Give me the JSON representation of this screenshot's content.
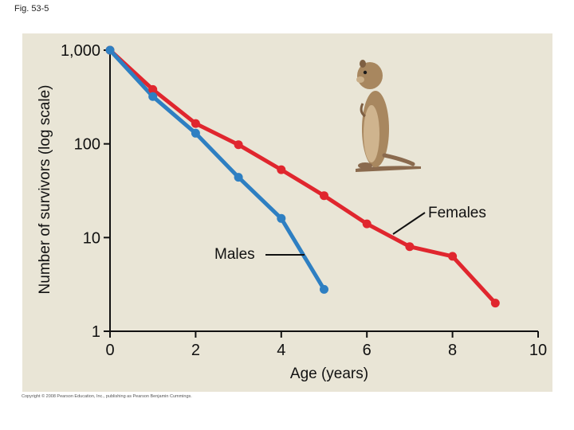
{
  "figure_label": "Fig. 53-5",
  "copyright": "Copyright © 2008 Pearson Education, Inc., publishing as Pearson Benjamin Cummings.",
  "colors": {
    "background": "#e9e5d6",
    "males": "#2e7fc2",
    "females": "#e0262e",
    "axis": "#111111"
  },
  "chart_data": {
    "type": "line",
    "xlabel": "Age (years)",
    "ylabel": "Number of survivors (log scale)",
    "xlim": [
      0,
      10
    ],
    "ylim": [
      1,
      1000
    ],
    "yscale": "log",
    "grid": false,
    "x_ticks": [
      0,
      2,
      4,
      6,
      8,
      10
    ],
    "y_ticks": [
      {
        "value": 1000,
        "label": "1,000"
      },
      {
        "value": 100,
        "label": "100"
      },
      {
        "value": 10,
        "label": "10"
      },
      {
        "value": 1,
        "label": "1"
      }
    ],
    "series": [
      {
        "name": "Females",
        "color": "#e0262e",
        "x": [
          0,
          1,
          2,
          3,
          4,
          5,
          6,
          7,
          8,
          9
        ],
        "y": [
          1000,
          380,
          165,
          98,
          53,
          28,
          14,
          8,
          6.3,
          2.0
        ]
      },
      {
        "name": "Males",
        "color": "#2e7fc2",
        "x": [
          0,
          1,
          2,
          3,
          4,
          5
        ],
        "y": [
          1000,
          320,
          130,
          44,
          16,
          2.8
        ]
      }
    ]
  }
}
